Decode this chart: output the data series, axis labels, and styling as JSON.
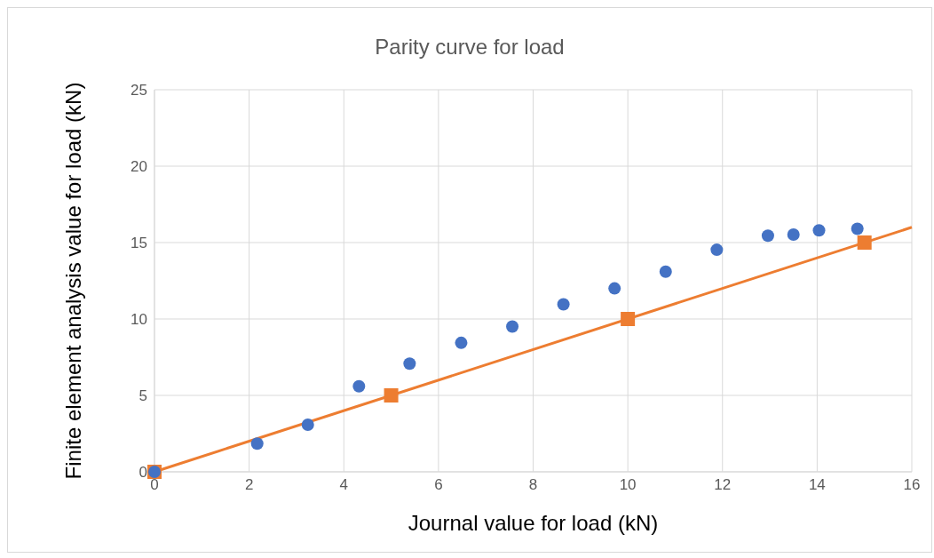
{
  "chart_data": {
    "type": "scatter",
    "title": "Parity curve for load",
    "xlabel": "Journal value for load (kN)",
    "ylabel": "Finite element analysis value for load (kN)",
    "xlim": [
      0,
      16
    ],
    "xticks": [
      0,
      2,
      4,
      6,
      8,
      10,
      12,
      14,
      16
    ],
    "ylim": [
      0,
      25
    ],
    "yticks": [
      0,
      5,
      10,
      15,
      20,
      25
    ],
    "grid": true,
    "legend": false,
    "series": [
      {
        "marker": "circle",
        "color": "#4472c4",
        "x": [
          0,
          2.17,
          3.24,
          4.32,
          5.39,
          6.48,
          7.56,
          8.64,
          9.72,
          10.8,
          11.88,
          12.96,
          13.5,
          14.04,
          14.85
        ],
        "values": [
          0,
          1.85,
          3.08,
          5.6,
          7.08,
          8.44,
          9.51,
          10.96,
          12.0,
          13.1,
          14.53,
          15.45,
          15.52,
          15.8,
          15.9
        ]
      },
      {
        "type": "scatter",
        "marker": "square",
        "color": "#ed7d31",
        "x": [
          0,
          5,
          10,
          15
        ],
        "values": [
          0,
          5,
          10,
          15
        ]
      },
      {
        "type": "line",
        "marker": "none",
        "color": "#ed7d31",
        "x": [
          0,
          16
        ],
        "values": [
          0,
          16
        ]
      }
    ]
  }
}
